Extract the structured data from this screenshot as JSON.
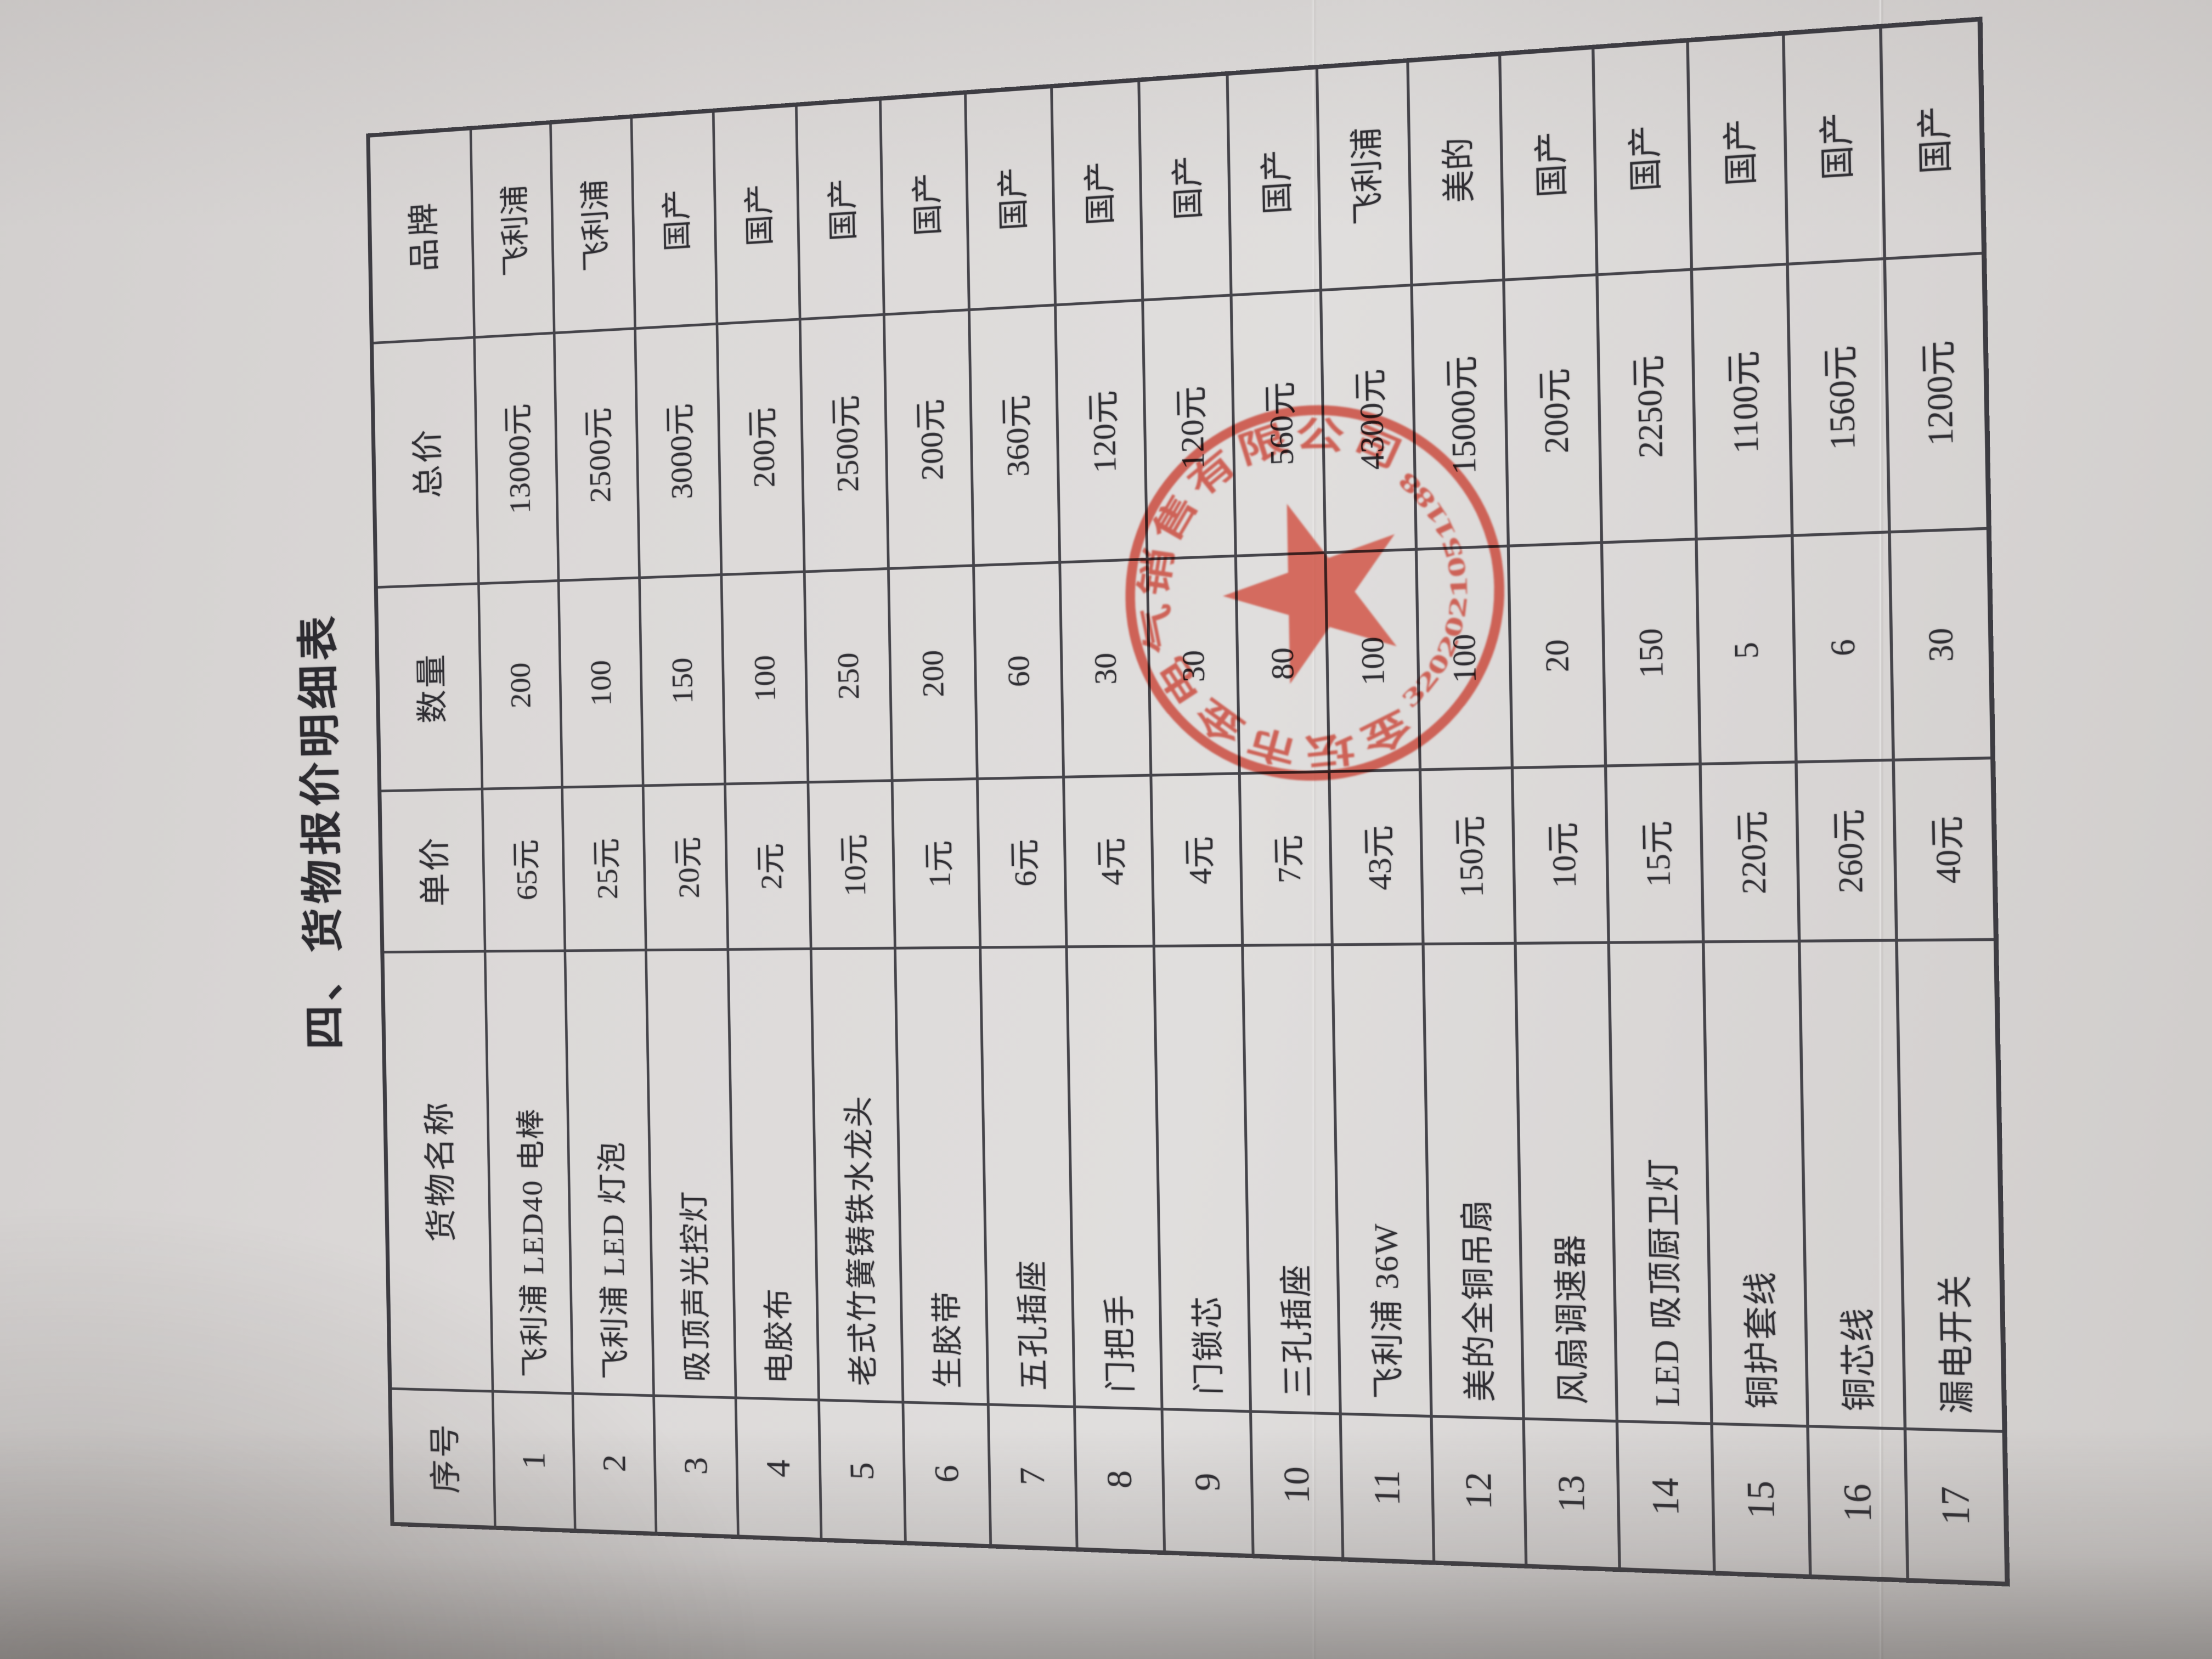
{
  "title": "四、货物报价明细表",
  "table": {
    "headers": {
      "no": "序号",
      "name": "货物名称",
      "unit_price": "单价",
      "quantity": "数量",
      "total_price": "总价",
      "brand": "品牌"
    },
    "rows": [
      {
        "no": "1",
        "name": "飞利浦 LED40 电棒",
        "unit_price": "65元",
        "quantity": "200",
        "total_price": "13000元",
        "brand": "飞利浦"
      },
      {
        "no": "2",
        "name": "飞利浦 LED 灯泡",
        "unit_price": "25元",
        "quantity": "100",
        "total_price": "2500元",
        "brand": "飞利浦"
      },
      {
        "no": "3",
        "name": "吸顶声光控灯",
        "unit_price": "20元",
        "quantity": "150",
        "total_price": "3000元",
        "brand": "国产"
      },
      {
        "no": "4",
        "name": "电胶布",
        "unit_price": "2元",
        "quantity": "100",
        "total_price": "200元",
        "brand": "国产"
      },
      {
        "no": "5",
        "name": "老式竹簧铸铁水龙头",
        "unit_price": "10元",
        "quantity": "250",
        "total_price": "2500元",
        "brand": "国产"
      },
      {
        "no": "6",
        "name": "生胶带",
        "unit_price": "1元",
        "quantity": "200",
        "total_price": "200元",
        "brand": "国产"
      },
      {
        "no": "7",
        "name": "五孔插座",
        "unit_price": "6元",
        "quantity": "60",
        "total_price": "360元",
        "brand": "国产"
      },
      {
        "no": "8",
        "name": "门把手",
        "unit_price": "4元",
        "quantity": "30",
        "total_price": "120元",
        "brand": "国产"
      },
      {
        "no": "9",
        "name": "门锁芯",
        "unit_price": "4元",
        "quantity": "30",
        "total_price": "120元",
        "brand": "国产"
      },
      {
        "no": "10",
        "name": "三孔插座",
        "unit_price": "7元",
        "quantity": "80",
        "total_price": "560元",
        "brand": "国产"
      },
      {
        "no": "11",
        "name": "飞利浦 36W",
        "unit_price": "43元",
        "quantity": "100",
        "total_price": "4300元",
        "brand": "飞利浦"
      },
      {
        "no": "12",
        "name": "美的全铜吊扇",
        "unit_price": "150元",
        "quantity": "100",
        "total_price": "15000元",
        "brand": "美的"
      },
      {
        "no": "13",
        "name": "风扇调速器",
        "unit_price": "10元",
        "quantity": "20",
        "total_price": "200元",
        "brand": "国产"
      },
      {
        "no": "14",
        "name": "LED 吸顶厨卫灯",
        "unit_price": "15元",
        "quantity": "150",
        "total_price": "2250元",
        "brand": "国产"
      },
      {
        "no": "15",
        "name": "铜护套线",
        "unit_price": "220元",
        "quantity": "5",
        "total_price": "1100元",
        "brand": "国产"
      },
      {
        "no": "16",
        "name": "铜芯线",
        "unit_price": "260元",
        "quantity": "6",
        "total_price": "1560元",
        "brand": "国产"
      },
      {
        "no": "17",
        "name": "漏电开关",
        "unit_price": "40元",
        "quantity": "30",
        "total_price": "1200元",
        "brand": "国产"
      }
    ]
  },
  "stamp": {
    "company": "金坛市金电气销售有限公司",
    "serial": "3202021051188",
    "color": "#c8473a"
  }
}
